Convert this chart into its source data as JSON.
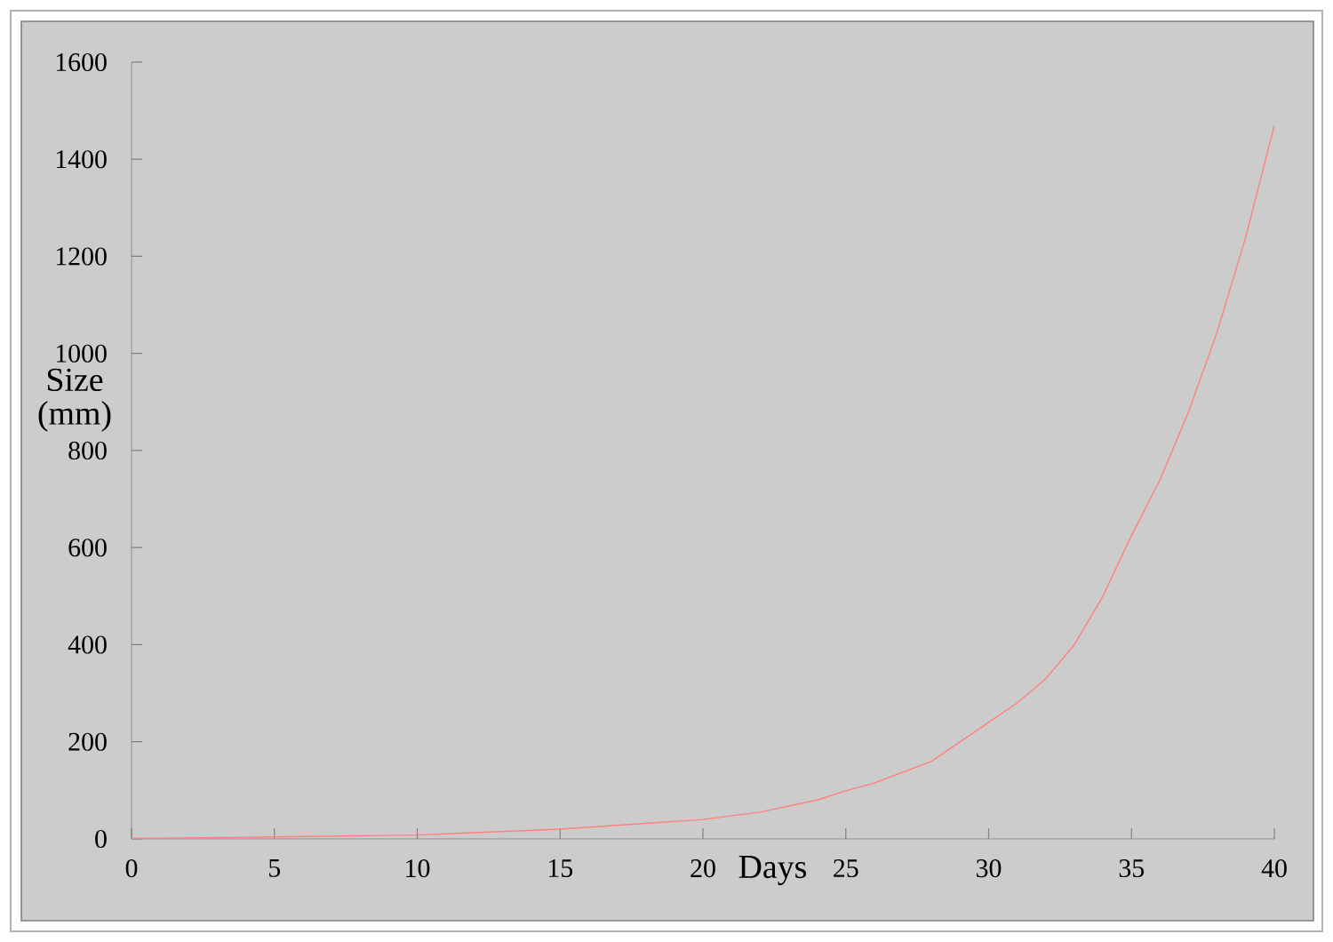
{
  "chart_data": {
    "type": "line",
    "xlabel": "Days",
    "ylabel": "Size (mm)",
    "x": [
      0,
      5,
      10,
      15,
      20,
      22,
      24,
      25,
      26,
      28,
      30,
      31,
      32,
      33,
      34,
      35,
      36,
      37,
      38,
      39,
      40
    ],
    "series": [
      {
        "color": "#ff8080",
        "values": [
          1,
          4,
          8,
          20,
          40,
          55,
          80,
          99,
          115,
          160,
          240,
          280,
          330,
          400,
          500,
          625,
          740,
          880,
          1045,
          1240,
          1470
        ]
      }
    ],
    "xlim": [
      0,
      40
    ],
    "ylim": [
      0,
      1600
    ],
    "xticks": [
      0,
      5,
      10,
      15,
      20,
      25,
      30,
      35,
      40
    ],
    "yticks": [
      0,
      200,
      400,
      600,
      800,
      1000,
      1200,
      1400,
      1600
    ],
    "marker": "none",
    "line_style": "solid"
  }
}
